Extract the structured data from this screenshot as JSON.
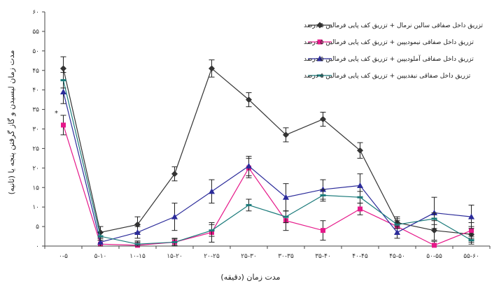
{
  "chart_data": {
    "type": "line",
    "xlabel": "مدت زمان (دقیقه)",
    "ylabel": "مدت زمان لیسیدن و گاز گرفتن پنجه یا (ثانیه)",
    "ylim": [
      0,
      60
    ],
    "yticks": [
      0,
      5,
      10,
      15,
      20,
      25,
      30,
      35,
      40,
      45,
      50,
      55,
      60
    ],
    "ytick_labels": [
      "۰",
      "۵",
      "۱۰",
      "۱۵",
      "۲۰",
      "۲۵",
      "۳۰",
      "۳۵",
      "۴۰",
      "۴۵",
      "۵۰",
      "۵۵",
      "۶۰"
    ],
    "categories": [
      "۰-۵",
      "۵-۱۰",
      "۱۰-۱۵",
      "۱۵-۲۰",
      "۲۰-۲۵",
      "۲۵-۳۰",
      "۳۰-۳۵",
      "۳۵-۴۰",
      "۴۰-۴۵",
      "۴۵-۵۰",
      "۵۰-۵۵",
      "۵۵-۶۰"
    ],
    "annotation": "*",
    "annotation_at": {
      "category_index": 0,
      "value": 34
    },
    "series": [
      {
        "name": "تزریق داخل صفاقی سالین نرمال + تزریق کف پایی فرمالین ۵ درصد",
        "color": "#333333",
        "marker": "diamond",
        "values": [
          45.5,
          3.5,
          5.5,
          18.5,
          45.5,
          37.5,
          28.5,
          32.5,
          24.5,
          6.0,
          4.0,
          3.0
        ],
        "errors": [
          3.0,
          1.5,
          2.0,
          1.8,
          2.2,
          1.8,
          1.8,
          1.8,
          2.0,
          1.5,
          2.5,
          2.0
        ]
      },
      {
        "name": "تزریق داخل صفاقی نیمودیپین + تزریق کف پایی فرمالین ۵ درصد",
        "color": "#e6198a",
        "marker": "square",
        "values": [
          31.0,
          0.5,
          0.2,
          1.0,
          3.5,
          20.0,
          6.5,
          4.0,
          9.5,
          5.0,
          0.2,
          4.0
        ],
        "errors": [
          2.5,
          1.0,
          0.8,
          1.0,
          2.5,
          2.5,
          2.5,
          2.5,
          1.5,
          2.0,
          1.0,
          2.0
        ]
      },
      {
        "name": "تزریق داخل صفاقی آملودیپین + تزریق کف پایی فرمالین ۵ درصد",
        "color": "#2b2b9a",
        "marker": "triangle",
        "values": [
          39.5,
          1.0,
          3.5,
          7.5,
          14.0,
          20.5,
          12.5,
          14.5,
          15.5,
          3.5,
          8.5,
          7.5
        ],
        "errors": [
          3.0,
          1.0,
          1.5,
          3.5,
          3.0,
          2.5,
          3.5,
          2.5,
          3.0,
          1.5,
          4.0,
          3.0
        ]
      },
      {
        "name": "تزریق داخل صفاقی نیفدیپین + تزریق کف پایی فرمالین ۵ درصد",
        "color": "#1a7a7a",
        "marker": "dash",
        "values": [
          42.5,
          2.5,
          0.5,
          1.0,
          4.0,
          10.5,
          7.5,
          13.0,
          12.5,
          5.5,
          7.0,
          1.5
        ],
        "errors": [
          2.0,
          1.0,
          0.8,
          0.8,
          1.5,
          1.5,
          1.5,
          1.5,
          1.5,
          1.0,
          1.5,
          1.0
        ]
      }
    ]
  }
}
